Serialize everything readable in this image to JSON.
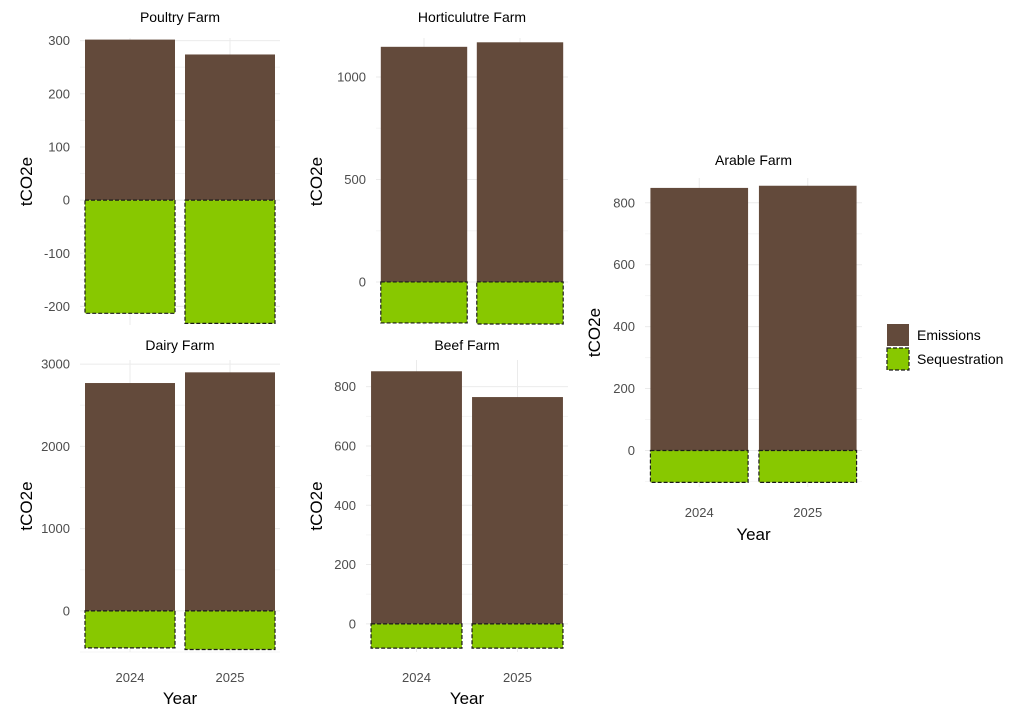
{
  "colors": {
    "emissions": "#634a3b",
    "sequestration": "#88c800",
    "dash_stroke": "#1a1a1a"
  },
  "legend": {
    "placement": "right",
    "items": [
      "Emissions",
      "Sequestration"
    ]
  },
  "chart_data": [
    {
      "type": "bar",
      "title": "Poultry Farm",
      "xlabel": "",
      "ylabel": "tCO2e",
      "categories": [
        "2024",
        "2025"
      ],
      "ylim": [
        -235,
        305
      ],
      "yticks": [
        -200,
        -100,
        0,
        100,
        200,
        300
      ],
      "grid": true,
      "series": [
        {
          "name": "Emissions",
          "values": [
            302,
            274
          ]
        },
        {
          "name": "Sequestration",
          "values": [
            -213,
            -232
          ]
        }
      ]
    },
    {
      "type": "bar",
      "title": "Horticulutre Farm",
      "xlabel": "",
      "ylabel": "tCO2e",
      "categories": [
        "2024",
        "2025"
      ],
      "ylim": [
        -210,
        1190
      ],
      "yticks": [
        0,
        500,
        1000
      ],
      "grid": true,
      "series": [
        {
          "name": "Emissions",
          "values": [
            1147,
            1169
          ]
        },
        {
          "name": "Sequestration",
          "values": [
            -200,
            -205
          ]
        }
      ]
    },
    {
      "type": "bar",
      "title": "Dairy Farm",
      "xlabel": "Year",
      "ylabel": "tCO2e",
      "categories": [
        "2024",
        "2025"
      ],
      "ylim": [
        -500,
        3050
      ],
      "yticks": [
        0,
        1000,
        2000,
        3000
      ],
      "grid": true,
      "series": [
        {
          "name": "Emissions",
          "values": [
            2770,
            2900
          ]
        },
        {
          "name": "Sequestration",
          "values": [
            -450,
            -470
          ]
        }
      ]
    },
    {
      "type": "bar",
      "title": "Beef Farm",
      "xlabel": "Year",
      "ylabel": "tCO2e",
      "categories": [
        "2024",
        "2025"
      ],
      "ylim": [
        -95,
        890
      ],
      "yticks": [
        0,
        200,
        400,
        600,
        800
      ],
      "grid": true,
      "series": [
        {
          "name": "Emissions",
          "values": [
            852,
            765
          ]
        },
        {
          "name": "Sequestration",
          "values": [
            -82,
            -82
          ]
        }
      ]
    },
    {
      "type": "bar",
      "title": "Arable Farm",
      "xlabel": "Year",
      "ylabel": "tCO2e",
      "categories": [
        "2024",
        "2025"
      ],
      "ylim": [
        -118,
        880
      ],
      "yticks": [
        0,
        200,
        400,
        600,
        800
      ],
      "grid": true,
      "series": [
        {
          "name": "Emissions",
          "values": [
            848,
            855
          ]
        },
        {
          "name": "Sequestration",
          "values": [
            -103,
            -103
          ]
        }
      ]
    }
  ]
}
